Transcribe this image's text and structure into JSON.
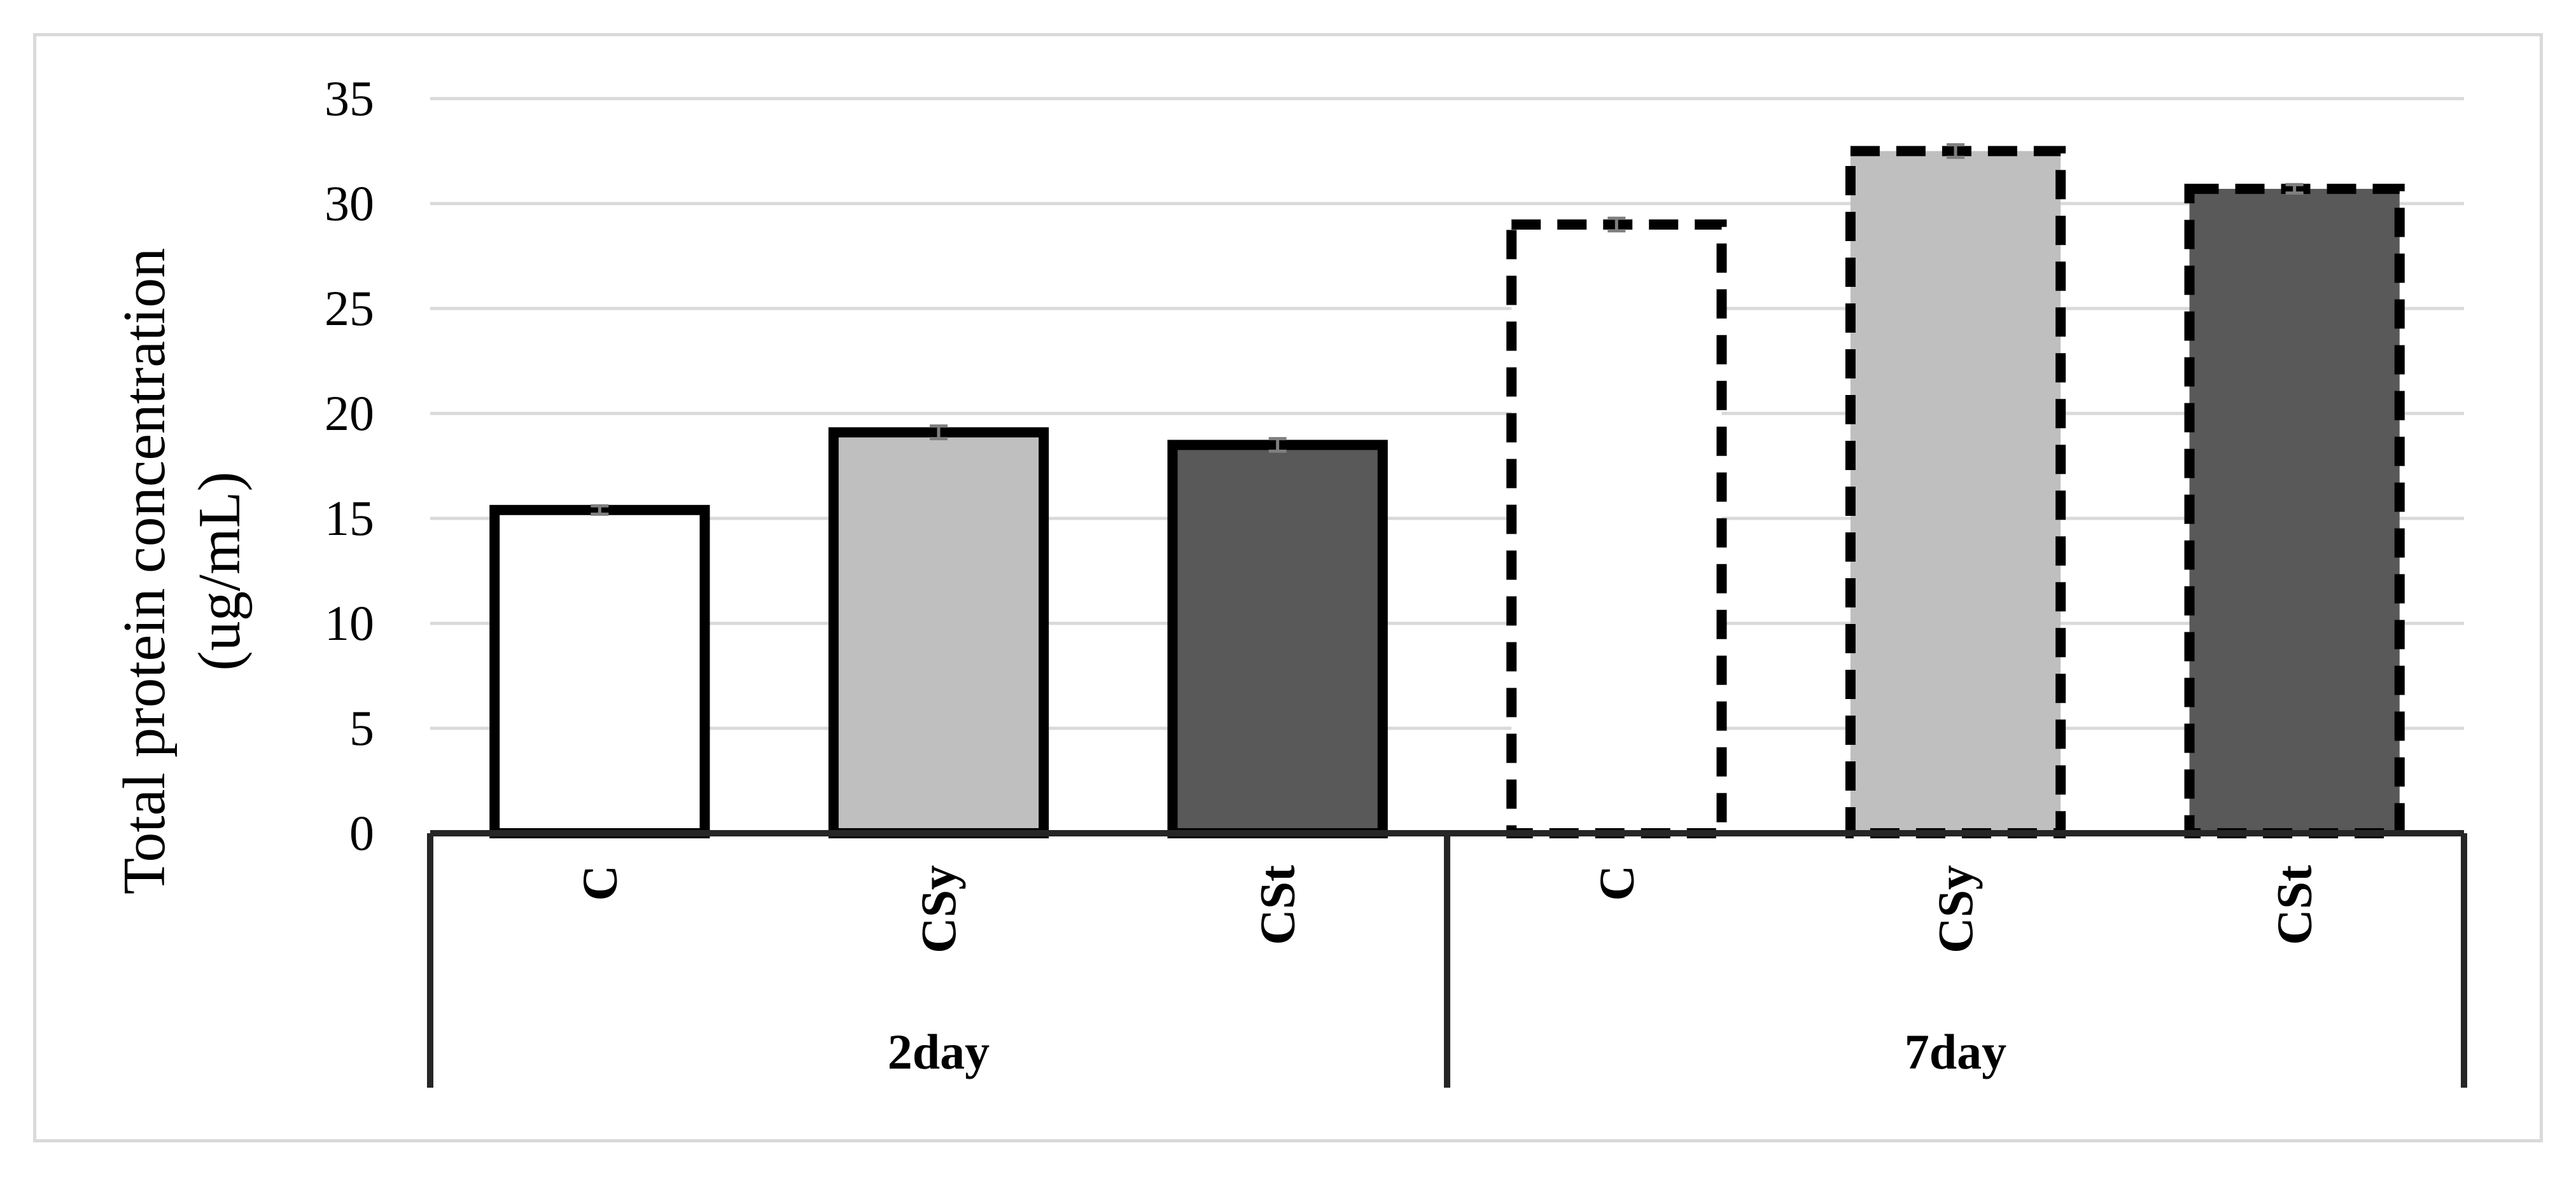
{
  "chart_data": {
    "type": "bar",
    "ylabel_lines": [
      "Total protein concentration",
      "(ug/mL)"
    ],
    "ylim": [
      0,
      35
    ],
    "yticks": [
      0,
      5,
      10,
      15,
      20,
      25,
      30,
      35
    ],
    "grid": true,
    "legend": "none",
    "groups": [
      {
        "label": "2day",
        "bars": [
          {
            "category": "C",
            "value": 15.4,
            "error": 0.2,
            "fill": "#ffffff",
            "border": "solid"
          },
          {
            "category": "CSy",
            "value": 19.1,
            "error": 0.3,
            "fill": "#bfbfbf",
            "border": "solid"
          },
          {
            "category": "CSt",
            "value": 18.5,
            "error": 0.3,
            "fill": "#595959",
            "border": "solid"
          }
        ]
      },
      {
        "label": "7day",
        "bars": [
          {
            "category": "C",
            "value": 29.0,
            "error": 0.3,
            "fill": "#ffffff",
            "border": "dashed"
          },
          {
            "category": "CSy",
            "value": 32.5,
            "error": 0.3,
            "fill": "#bfbfbf",
            "border": "dashed"
          },
          {
            "category": "CSt",
            "value": 30.7,
            "error": 0.2,
            "fill": "#595959",
            "border": "dashed"
          }
        ]
      }
    ],
    "colors": {
      "gridline": "#d9d9d9",
      "axis": "#262626",
      "bar_border": "#000000",
      "error_bar": "#7f7f7f"
    }
  }
}
